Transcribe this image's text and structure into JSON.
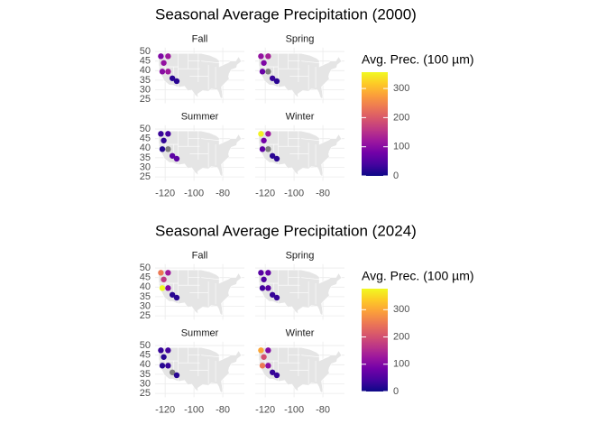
{
  "chart_data": [
    {
      "type": "map-scatter",
      "title": "Seasonal Average Precipitation (2000)",
      "lon": [
        -123,
        -118,
        -121,
        -122,
        -118,
        -115,
        -112
      ],
      "lat": [
        47.5,
        47.5,
        44,
        39.5,
        39.5,
        36,
        34.5
      ],
      "facets": [
        {
          "name": "Fall",
          "values": [
            90,
            120,
            110,
            100,
            120,
            20,
            20
          ]
        },
        {
          "name": "Spring",
          "values": [
            110,
            130,
            90,
            70,
            null,
            30,
            20
          ]
        },
        {
          "name": "Summer",
          "values": [
            30,
            40,
            25,
            15,
            null,
            60,
            60
          ]
        },
        {
          "name": "Winter",
          "values": [
            350,
            120,
            80,
            60,
            null,
            20,
            20
          ]
        }
      ],
      "xlim": [
        -127,
        -65
      ],
      "ylim": [
        23,
        52
      ],
      "xticks": [
        -120,
        -100,
        -80
      ],
      "yticks": [
        25,
        30,
        35,
        40,
        45,
        50
      ],
      "legend_title": "Avg. Prec. (100 µm)",
      "colormap": "plasma",
      "clim": [
        0,
        356
      ],
      "cticks": [
        0,
        100,
        200,
        300
      ]
    },
    {
      "type": "map-scatter",
      "title": "Seasonal Average Precipitation (2024)",
      "lon": [
        -123,
        -118,
        -121,
        -122,
        -118,
        -115,
        -112
      ],
      "lat": [
        47.5,
        47.5,
        44,
        39.5,
        39.5,
        36,
        34.5
      ],
      "facets": [
        {
          "name": "Fall",
          "values": [
            250,
            130,
            170,
            390,
            100,
            20,
            20
          ]
        },
        {
          "name": "Spring",
          "values": [
            60,
            70,
            50,
            40,
            60,
            30,
            30
          ]
        },
        {
          "name": "Summer",
          "values": [
            30,
            40,
            20,
            20,
            30,
            null,
            20
          ]
        },
        {
          "name": "Winter",
          "values": [
            300,
            100,
            200,
            250,
            110,
            30,
            30
          ]
        }
      ],
      "xlim": [
        -127,
        -65
      ],
      "ylim": [
        23,
        52
      ],
      "xticks": [
        -120,
        -100,
        -80
      ],
      "yticks": [
        25,
        30,
        35,
        40,
        45,
        50
      ],
      "legend_title": "Avg. Prec. (100 µm)",
      "colormap": "plasma",
      "clim": [
        0,
        377
      ],
      "cticks": [
        0,
        100,
        200,
        300
      ]
    }
  ]
}
